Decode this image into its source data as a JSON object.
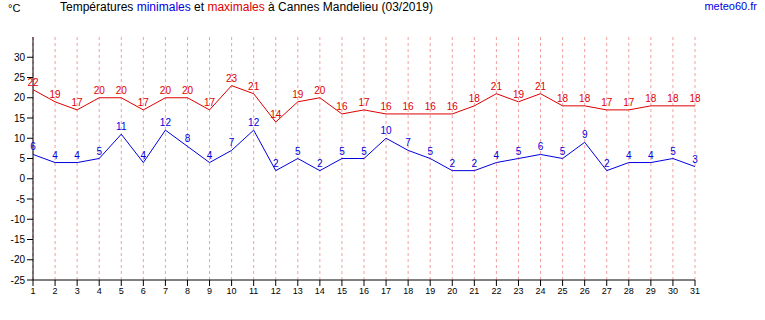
{
  "chart_data": {
    "type": "line",
    "title": "Températures minimales et maximales à Cannes Mandelieu (03/2019)",
    "y_label": "°C",
    "source": "meteo60.fr",
    "x": [
      1,
      2,
      3,
      4,
      5,
      6,
      7,
      8,
      9,
      10,
      11,
      12,
      13,
      14,
      15,
      16,
      17,
      18,
      19,
      20,
      21,
      22,
      23,
      24,
      25,
      26,
      27,
      28,
      29,
      30,
      31
    ],
    "series": [
      {
        "name": "minimales",
        "color": "#0000dd",
        "values": [
          6,
          4,
          4,
          5,
          11,
          4,
          12,
          8,
          4,
          7,
          12,
          2,
          5,
          2,
          5,
          5,
          10,
          7,
          5,
          2,
          2,
          4,
          5,
          6,
          5,
          9,
          2,
          4,
          4,
          5,
          3
        ]
      },
      {
        "name": "maximales",
        "color": "#dd0000",
        "values": [
          22,
          19,
          17,
          20,
          20,
          17,
          20,
          20,
          17,
          23,
          21,
          14,
          19,
          20,
          16,
          17,
          16,
          16,
          16,
          16,
          18,
          21,
          19,
          21,
          18,
          18,
          17,
          17,
          18,
          18,
          18
        ]
      }
    ],
    "xlim": [
      1,
      31
    ],
    "xticks": [
      1,
      2,
      3,
      4,
      5,
      6,
      7,
      8,
      9,
      10,
      11,
      12,
      13,
      14,
      15,
      16,
      17,
      18,
      19,
      20,
      21,
      22,
      23,
      24,
      25,
      26,
      27,
      28,
      29,
      30,
      31
    ],
    "ylim": [
      -25,
      35
    ],
    "yticks": [
      -25,
      -20,
      -15,
      -10,
      -5,
      0,
      5,
      10,
      15,
      20,
      25,
      30
    ],
    "grid": true,
    "data_labels": true
  }
}
